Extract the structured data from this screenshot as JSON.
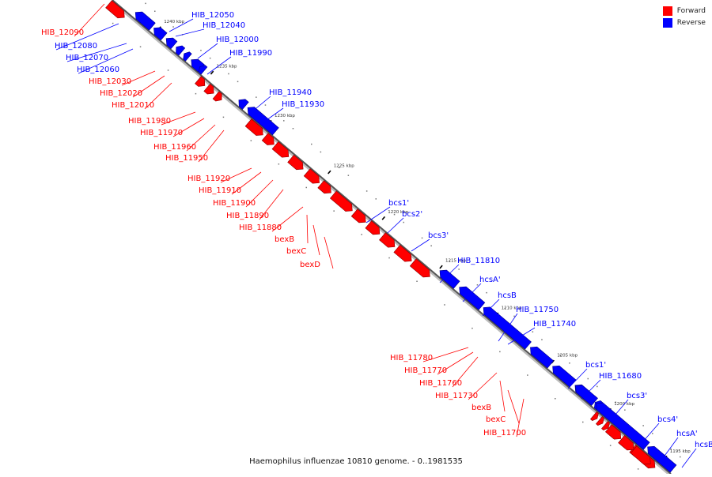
{
  "legend": {
    "forward_label": "Forward",
    "reverse_label": "Reverse",
    "forward_color": "#ff0000",
    "reverse_color": "#0000ff"
  },
  "caption": "Haemophilus influenzae 10810 genome. - 0..1981535",
  "ticks": [
    {
      "kbp": 1240,
      "label": "1240 kbp"
    },
    {
      "kbp": 1235,
      "label": "1235 kbp"
    },
    {
      "kbp": 1230,
      "label": "1230 kbp"
    },
    {
      "kbp": 1225,
      "label": "1225 kbp"
    },
    {
      "kbp": 1220,
      "label": "1220 kbp"
    },
    {
      "kbp": 1215,
      "label": "1215 kbp"
    },
    {
      "kbp": 1210,
      "label": "1210 kbp"
    },
    {
      "kbp": 1205,
      "label": "1205 kbp"
    },
    {
      "kbp": 1200,
      "label": "1200 kbp"
    },
    {
      "kbp": 1195,
      "label": "1195 kbp"
    }
  ],
  "genes": [
    {
      "name": "HIB_12090",
      "strand": "forward"
    },
    {
      "name": "HIB_12050",
      "strand": "reverse"
    },
    {
      "name": "HIB_12040",
      "strand": "reverse"
    },
    {
      "name": "HIB_12080",
      "strand": "reverse"
    },
    {
      "name": "HIB_12000",
      "strand": "reverse"
    },
    {
      "name": "HIB_12070",
      "strand": "reverse"
    },
    {
      "name": "HIB_11990",
      "strand": "reverse"
    },
    {
      "name": "HIB_12060",
      "strand": "reverse"
    },
    {
      "name": "HIB_12030",
      "strand": "forward"
    },
    {
      "name": "HIB_12020",
      "strand": "forward"
    },
    {
      "name": "HIB_12010",
      "strand": "forward"
    },
    {
      "name": "HIB_11940",
      "strand": "reverse"
    },
    {
      "name": "HIB_11930",
      "strand": "reverse"
    },
    {
      "name": "HIB_11980",
      "strand": "forward"
    },
    {
      "name": "HIB_11970",
      "strand": "forward"
    },
    {
      "name": "HIB_11960",
      "strand": "forward"
    },
    {
      "name": "HIB_11950",
      "strand": "forward"
    },
    {
      "name": "HIB_11920",
      "strand": "forward"
    },
    {
      "name": "HIB_11910",
      "strand": "forward"
    },
    {
      "name": "HIB_11900",
      "strand": "forward"
    },
    {
      "name": "HIB_11890",
      "strand": "forward"
    },
    {
      "name": "HIB_11880",
      "strand": "forward"
    },
    {
      "name": "bexB",
      "strand": "forward"
    },
    {
      "name": "bexC",
      "strand": "forward"
    },
    {
      "name": "bexD",
      "strand": "forward"
    },
    {
      "name": "bcs1'",
      "strand": "reverse"
    },
    {
      "name": "bcs2'",
      "strand": "reverse"
    },
    {
      "name": "bcs3'",
      "strand": "reverse"
    },
    {
      "name": "HIB_11810",
      "strand": "reverse"
    },
    {
      "name": "hcsA'",
      "strand": "reverse"
    },
    {
      "name": "hcsB",
      "strand": "reverse"
    },
    {
      "name": "HIB_11750",
      "strand": "reverse"
    },
    {
      "name": "HIB_11740",
      "strand": "reverse"
    },
    {
      "name": "HIB_11780",
      "strand": "forward"
    },
    {
      "name": "HIB_11770",
      "strand": "forward"
    },
    {
      "name": "HIB_11760",
      "strand": "forward"
    },
    {
      "name": "HIB_11730",
      "strand": "forward"
    },
    {
      "name": "bexB",
      "strand": "forward"
    },
    {
      "name": "bexC",
      "strand": "forward"
    },
    {
      "name": "HIB_11700",
      "strand": "forward"
    },
    {
      "name": "bcs1'",
      "strand": "reverse"
    },
    {
      "name": "HIB_11680",
      "strand": "reverse"
    },
    {
      "name": "bcs3'",
      "strand": "reverse"
    },
    {
      "name": "bcs4'",
      "strand": "reverse"
    },
    {
      "name": "hcsA'",
      "strand": "reverse"
    },
    {
      "name": "hcsB",
      "strand": "reverse"
    }
  ]
}
